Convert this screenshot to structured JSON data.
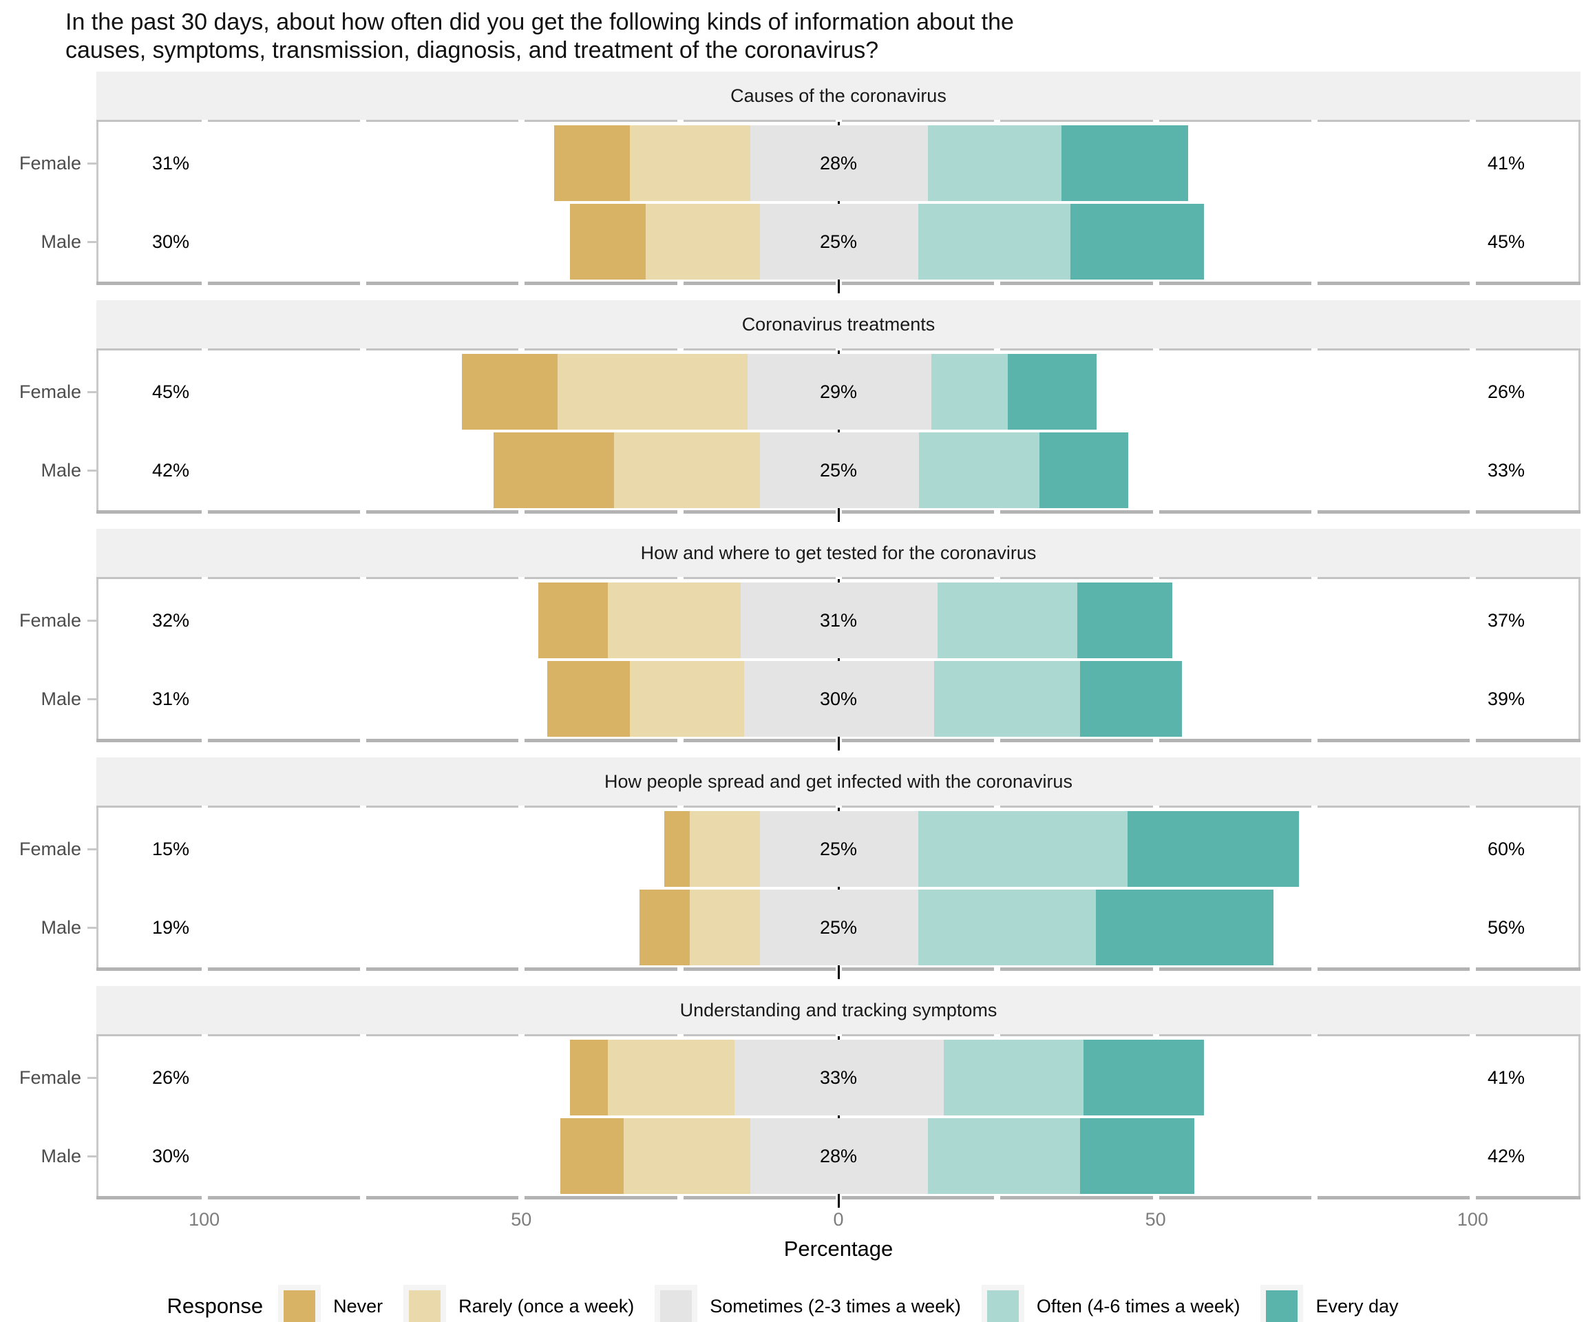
{
  "title": "In the past 30 days, about how often did you get the following kinds of information about the\ncauses, symptoms, transmission, diagnosis, and treatment of the coronavirus?",
  "axis": {
    "label": "Percentage",
    "ticks": [
      {
        "value": -100,
        "label": "100"
      },
      {
        "value": -50,
        "label": "50"
      },
      {
        "value": 0,
        "label": "0"
      },
      {
        "value": 50,
        "label": "50"
      },
      {
        "value": 100,
        "label": "100"
      }
    ]
  },
  "legend": {
    "title": "Response",
    "items": [
      {
        "label": "Never",
        "color": "#d8b365"
      },
      {
        "label": "Rarely (once a week)",
        "color": "#e9d9ab"
      },
      {
        "label": "Sometimes (2-3 times a week)",
        "color": "#e4e4e4"
      },
      {
        "label": "Often (4-6 times a week)",
        "color": "#acd8d2"
      },
      {
        "label": "Every day",
        "color": "#5ab4ac"
      }
    ]
  },
  "colors": {
    "strip_bg": "#f0f0f0",
    "panel_border": "#c9c9c9",
    "zero_line": "#000000",
    "axis_text": "#7d7d7d",
    "group_text": "#4d4d4d"
  },
  "chart_data": {
    "type": "bar",
    "variant": "diverging-stacked-likert",
    "orientation": "horizontal",
    "xlabel": "Percentage",
    "xlim": [
      -117,
      117
    ],
    "center_value": 0,
    "minor_tick_step": 25,
    "responses": [
      "Never",
      "Rarely (once a week)",
      "Sometimes (2-3 times a week)",
      "Often (4-6 times a week)",
      "Every day"
    ],
    "note": "Sometimes segment is centered on 0; left label = Never+Rarely, mid label = Sometimes, right label = Often+Every day",
    "panels": [
      {
        "title": "Causes of the coronavirus",
        "rows": [
          {
            "group": "Female",
            "values": [
              12,
              19,
              28,
              21,
              20
            ],
            "label_left": "31%",
            "label_mid": "28%",
            "label_right": "41%"
          },
          {
            "group": "Male",
            "values": [
              12,
              18,
              25,
              24,
              21
            ],
            "label_left": "30%",
            "label_mid": "25%",
            "label_right": "45%"
          }
        ]
      },
      {
        "title": "Coronavirus treatments",
        "rows": [
          {
            "group": "Female",
            "values": [
              15,
              30,
              29,
              12,
              14
            ],
            "label_left": "45%",
            "label_mid": "29%",
            "label_right": "26%"
          },
          {
            "group": "Male",
            "values": [
              19,
              23,
              25,
              19,
              14
            ],
            "label_left": "42%",
            "label_mid": "25%",
            "label_right": "33%"
          }
        ]
      },
      {
        "title": "How and where to get tested for the coronavirus",
        "rows": [
          {
            "group": "Female",
            "values": [
              11,
              21,
              31,
              22,
              15
            ],
            "label_left": "32%",
            "label_mid": "31%",
            "label_right": "37%"
          },
          {
            "group": "Male",
            "values": [
              13,
              18,
              30,
              23,
              16
            ],
            "label_left": "31%",
            "label_mid": "30%",
            "label_right": "39%"
          }
        ]
      },
      {
        "title": "How people spread and get infected with the coronavirus",
        "rows": [
          {
            "group": "Female",
            "values": [
              4,
              11,
              25,
              33,
              27
            ],
            "label_left": "15%",
            "label_mid": "25%",
            "label_right": "60%"
          },
          {
            "group": "Male",
            "values": [
              8,
              11,
              25,
              28,
              28
            ],
            "label_left": "19%",
            "label_mid": "25%",
            "label_right": "56%"
          }
        ]
      },
      {
        "title": "Understanding and tracking symptoms",
        "rows": [
          {
            "group": "Female",
            "values": [
              6,
              20,
              33,
              22,
              19
            ],
            "label_left": "26%",
            "label_mid": "33%",
            "label_right": "41%"
          },
          {
            "group": "Male",
            "values": [
              10,
              20,
              28,
              24,
              18
            ],
            "label_left": "30%",
            "label_mid": "28%",
            "label_right": "42%"
          }
        ]
      }
    ]
  }
}
